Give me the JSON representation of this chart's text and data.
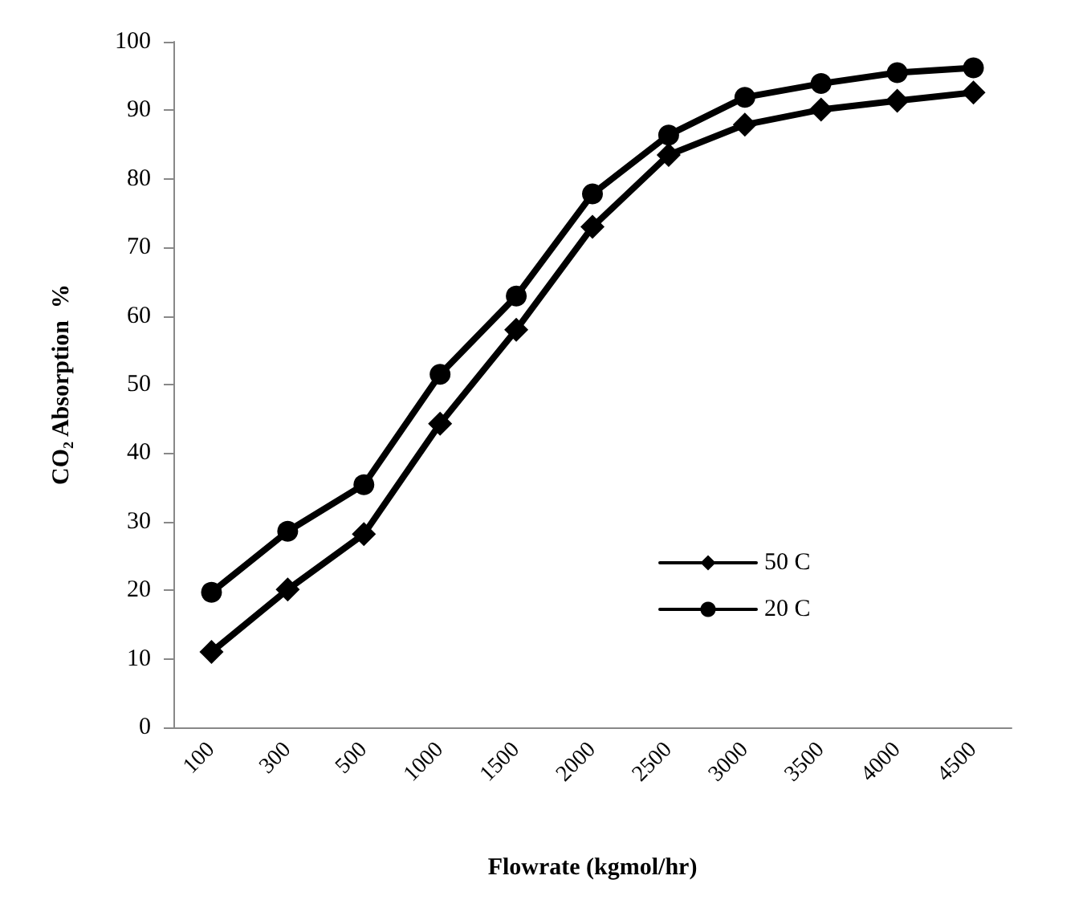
{
  "chart_data": {
    "type": "line",
    "xlabel": "Flowrate (kgmol/hr)",
    "ylabel": "CO₂ Absorption  %",
    "categories": [
      "100",
      "300",
      "500",
      "1000",
      "1500",
      "2000",
      "2500",
      "3000",
      "3500",
      "4000",
      "4500"
    ],
    "series": [
      {
        "name": "50 C",
        "color": "#000000",
        "marker": "diamond",
        "values": [
          11.0,
          20.1,
          28.2,
          44.3,
          58.0,
          73.0,
          83.5,
          87.9,
          90.1,
          91.4,
          92.6
        ]
      },
      {
        "name": "20 C",
        "color": "#000000",
        "marker": "circle",
        "values": [
          19.7,
          28.6,
          35.4,
          51.5,
          62.9,
          77.8,
          86.4,
          91.9,
          93.9,
          95.5,
          96.2
        ]
      }
    ],
    "ylim": [
      0,
      100
    ],
    "yticks": [
      0,
      10,
      20,
      30,
      40,
      50,
      60,
      70,
      80,
      90,
      100
    ],
    "grid": false,
    "legend": "right",
    "line_style": "solid"
  }
}
